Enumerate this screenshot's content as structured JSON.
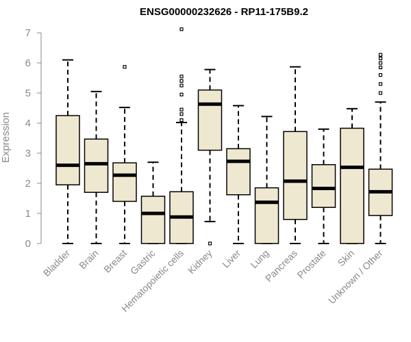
{
  "chart_data": {
    "type": "boxplot",
    "title": "ENSG00000232626 - RP11-175B9.2",
    "xlabel": "",
    "ylabel": "Expression",
    "ylim": [
      0,
      7
    ],
    "yticks": [
      0,
      1,
      2,
      3,
      4,
      5,
      6,
      7
    ],
    "box_fill": "#efe8d0",
    "categories": [
      "Bladder",
      "Brain",
      "Breast",
      "Gastric",
      "Hematopoietic cells",
      "Kidney",
      "Liver",
      "Lung",
      "Pancreas",
      "Prostate",
      "Skin",
      "Unknown / Other"
    ],
    "boxes": [
      {
        "min": 0,
        "q1": 1.95,
        "median": 2.6,
        "q3": 4.25,
        "max": 6.1,
        "outliers": []
      },
      {
        "min": 0,
        "q1": 1.7,
        "median": 2.65,
        "q3": 3.47,
        "max": 5.05,
        "outliers": []
      },
      {
        "min": 0,
        "q1": 1.4,
        "median": 2.27,
        "q3": 2.68,
        "max": 4.52,
        "outliers": [
          5.87
        ]
      },
      {
        "min": 0,
        "q1": 0,
        "median": 1.0,
        "q3": 1.57,
        "max": 2.7,
        "outliers": []
      },
      {
        "min": 0,
        "q1": 0,
        "median": 0.88,
        "q3": 1.72,
        "max": 4.02,
        "outliers": [
          4.1,
          4.3,
          4.45,
          4.95,
          5.25,
          5.4,
          5.55,
          7.12
        ]
      },
      {
        "min": 0.73,
        "q1": 3.1,
        "median": 4.63,
        "q3": 5.1,
        "max": 5.78,
        "outliers": [
          0
        ]
      },
      {
        "min": 0,
        "q1": 1.62,
        "median": 2.73,
        "q3": 3.15,
        "max": 4.58,
        "outliers": []
      },
      {
        "min": 0,
        "q1": 0,
        "median": 1.37,
        "q3": 1.85,
        "max": 4.22,
        "outliers": []
      },
      {
        "min": 0,
        "q1": 0.8,
        "median": 2.07,
        "q3": 3.72,
        "max": 5.87,
        "outliers": []
      },
      {
        "min": 0,
        "q1": 1.2,
        "median": 1.83,
        "q3": 2.62,
        "max": 3.8,
        "outliers": []
      },
      {
        "min": 0,
        "q1": 0,
        "median": 2.53,
        "q3": 3.83,
        "max": 4.48,
        "outliers": []
      },
      {
        "min": 0,
        "q1": 0.93,
        "median": 1.72,
        "q3": 2.47,
        "max": 4.7,
        "outliers": [
          5.0,
          5.3,
          5.6,
          5.85,
          6.0,
          6.15,
          6.27
        ]
      }
    ]
  }
}
